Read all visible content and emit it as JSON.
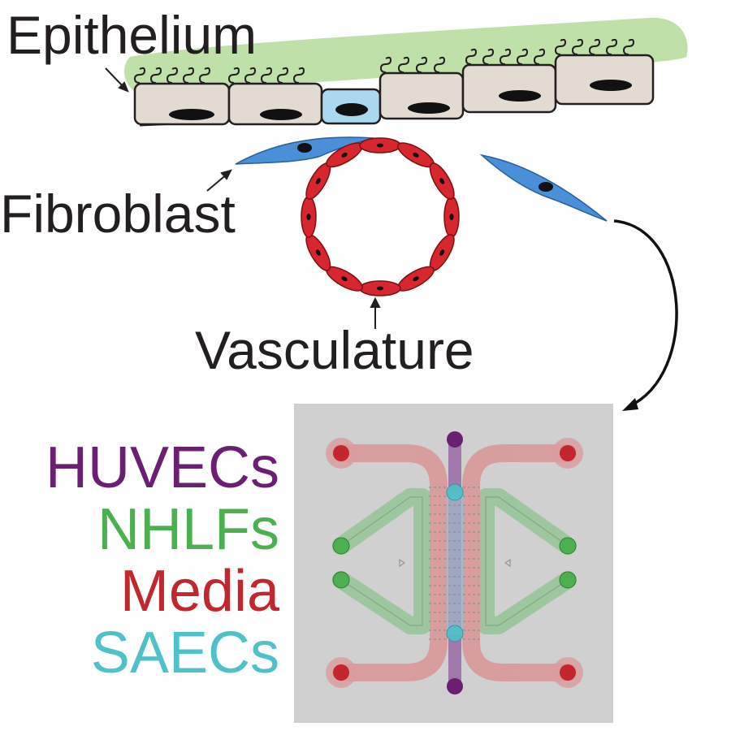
{
  "labels": {
    "epithelium": "Epithelium",
    "fibroblast": "Fibroblast",
    "vasculature": "Vasculature"
  },
  "legend": [
    {
      "label": "HUVECs",
      "color": "#6a1f73"
    },
    {
      "label": "NHLFs",
      "color": "#4caf50"
    },
    {
      "label": "Media",
      "color": "#c1272d"
    },
    {
      "label": "SAECs",
      "color": "#4fc1c9"
    }
  ],
  "colors": {
    "mucus": "#bfe0a8",
    "epithelial_cell": "#e3dbd2",
    "highlight_cell": "#a9d8f0",
    "fibroblast": "#4a90d9",
    "endothelial": "#d7262d",
    "chip_bg": "#d0d0d0",
    "media_channel": "#d99b9b",
    "nhlf_channel": "#9cc69c",
    "huvec_channel": "#9b6fa8"
  }
}
